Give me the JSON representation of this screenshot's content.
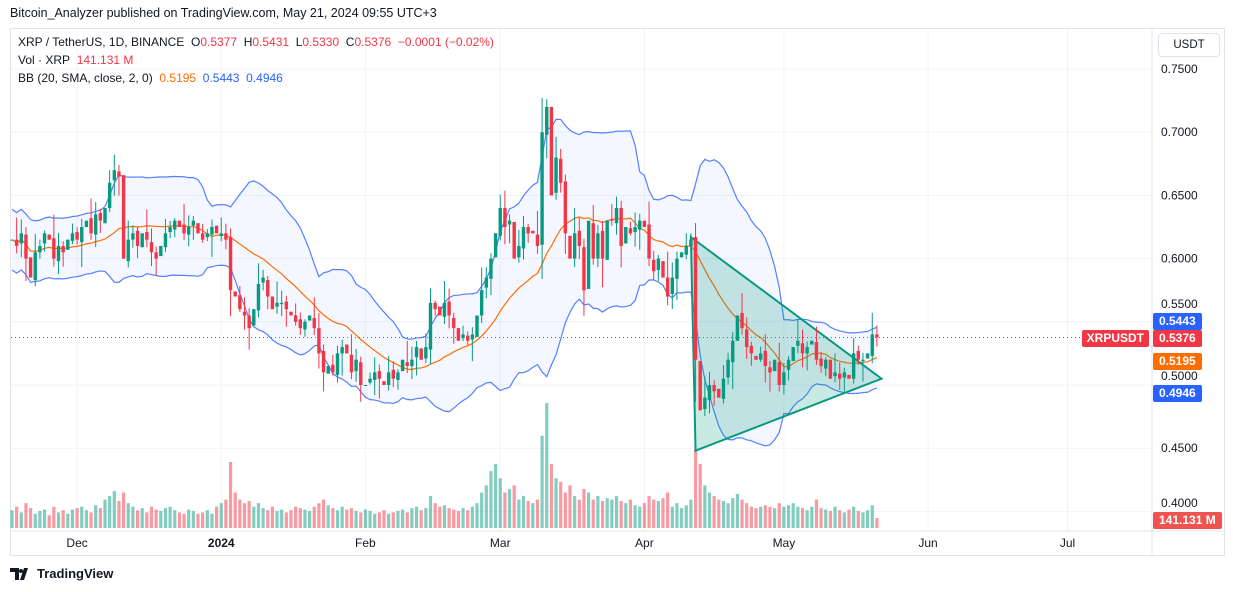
{
  "publisher": "Bitcoin_Analyzer published on TradingView.com, May 21, 2024 09:55 UTC+3",
  "legend": {
    "symbol": "XRP / TetherUS, 1D, BINANCE",
    "o_label": "O",
    "o": "0.5377",
    "h_label": "H",
    "h": "0.5431",
    "l_label": "L",
    "l": "0.5330",
    "c_label": "C",
    "c": "0.5376",
    "change": "−0.0001 (−0.02%)",
    "vol_label": "Vol · XRP",
    "vol": "141.131 M",
    "bb_label": "BB (20, SMA, close, 2, 0)",
    "bb_basis": "0.5195",
    "bb_upper": "0.5443",
    "bb_lower": "0.4946"
  },
  "currency_button": "USDT",
  "tags": {
    "symbol": "XRPUSDT",
    "last": "0.5376",
    "upper": "0.5443",
    "basis": "0.5195",
    "lower": "0.4946",
    "volume": "141.131 M"
  },
  "brand": "TradingView",
  "colors": {
    "up": "#089981",
    "down": "#f23645",
    "bb_band": "#2962ff",
    "bb_basis": "#ff6d00",
    "triangle": "#089981"
  },
  "chart_data": {
    "type": "candlestick",
    "start_date": "2023-11-17",
    "x_tick_labels": [
      "Dec",
      "2024",
      "Feb",
      "Mar",
      "Apr",
      "May",
      "Jun",
      "Jul"
    ],
    "y_tick_labels": [
      "0.7500",
      "0.7000",
      "0.6500",
      "0.6000",
      "0.5500",
      "0.5000",
      "0.4500",
      "0.4000"
    ],
    "ylim": [
      0.39,
      0.76
    ],
    "grid": true,
    "closes": [
      0.615,
      0.61,
      0.62,
      0.6,
      0.585,
      0.605,
      0.61,
      0.62,
      0.615,
      0.6,
      0.61,
      0.605,
      0.615,
      0.62,
      0.615,
      0.625,
      0.63,
      0.62,
      0.635,
      0.63,
      0.64,
      0.66,
      0.67,
      0.665,
      0.6,
      0.615,
      0.62,
      0.61,
      0.62,
      0.615,
      0.605,
      0.6,
      0.61,
      0.62,
      0.625,
      0.63,
      0.625,
      0.62,
      0.625,
      0.63,
      0.62,
      0.615,
      0.62,
      0.625,
      0.62,
      0.62,
      0.615,
      0.575,
      0.57,
      0.56,
      0.555,
      0.545,
      0.56,
      0.58,
      0.585,
      0.57,
      0.56,
      0.565,
      0.565,
      0.56,
      0.555,
      0.55,
      0.545,
      0.55,
      0.555,
      0.545,
      0.525,
      0.51,
      0.515,
      0.51,
      0.525,
      0.53,
      0.525,
      0.51,
      0.52,
      0.5,
      0.5,
      0.505,
      0.51,
      0.505,
      0.5,
      0.51,
      0.505,
      0.51,
      0.52,
      0.515,
      0.52,
      0.53,
      0.52,
      0.53,
      0.565,
      0.56,
      0.555,
      0.565,
      0.555,
      0.545,
      0.535,
      0.54,
      0.535,
      0.54,
      0.555,
      0.575,
      0.585,
      0.6,
      0.62,
      0.64,
      0.625,
      0.63,
      0.6,
      0.61,
      0.625,
      0.62,
      0.62,
      0.61,
      0.7,
      0.72,
      0.65,
      0.68,
      0.66,
      0.62,
      0.6,
      0.62,
      0.61,
      0.575,
      0.63,
      0.6,
      0.62,
      0.6,
      0.63,
      0.63,
      0.64,
      0.61,
      0.625,
      0.62,
      0.625,
      0.63,
      0.625,
      0.6,
      0.59,
      0.6,
      0.585,
      0.57,
      0.585,
      0.6,
      0.605,
      0.61,
      0.615,
      0.52,
      0.48,
      0.49,
      0.5,
      0.495,
      0.49,
      0.505,
      0.52,
      0.535,
      0.555,
      0.545,
      0.53,
      0.525,
      0.52,
      0.525,
      0.515,
      0.51,
      0.52,
      0.5,
      0.51,
      0.52,
      0.53,
      0.535,
      0.525,
      0.53,
      0.535,
      0.52,
      0.515,
      0.52,
      0.505,
      0.51,
      0.505,
      0.51,
      0.505,
      0.525,
      0.52,
      0.52,
      0.525,
      0.54,
      0.5376
    ],
    "volumes_m": [
      250,
      300,
      220,
      350,
      280,
      200,
      240,
      260,
      180,
      300,
      220,
      250,
      200,
      260,
      280,
      300,
      250,
      220,
      320,
      280,
      400,
      450,
      520,
      380,
      500,
      350,
      300,
      250,
      280,
      220,
      300,
      260,
      240,
      280,
      300,
      250,
      220,
      200,
      260,
      240,
      200,
      220,
      250,
      200,
      300,
      350,
      400,
      930,
      500,
      400,
      350,
      380,
      300,
      350,
      280,
      250,
      300,
      240,
      260,
      220,
      250,
      300,
      280,
      260,
      240,
      300,
      350,
      400,
      320,
      280,
      250,
      300,
      260,
      280,
      240,
      220,
      260,
      240,
      200,
      220,
      250,
      200,
      220,
      240,
      260,
      220,
      280,
      300,
      250,
      280,
      450,
      350,
      300,
      320,
      280,
      260,
      240,
      280,
      250,
      300,
      350,
      500,
      600,
      800,
      900,
      700,
      500,
      550,
      600,
      400,
      450,
      380,
      350,
      400,
      1300,
      1760,
      900,
      700,
      650,
      500,
      600,
      450,
      400,
      550,
      500,
      400,
      450,
      380,
      420,
      400,
      450,
      380,
      350,
      400,
      320,
      300,
      350,
      450,
      400,
      380,
      420,
      500,
      300,
      350,
      280,
      320,
      400,
      1100,
      900,
      600,
      500,
      450,
      400,
      380,
      350,
      420,
      480,
      400,
      350,
      300,
      280,
      300,
      320,
      300,
      280,
      350,
      300,
      320,
      350,
      300,
      280,
      250,
      300,
      400,
      280,
      260,
      240,
      300,
      250,
      220,
      260,
      300,
      240,
      220,
      250,
      320,
      141
    ]
  },
  "drawing": {
    "type": "triangle",
    "points": [
      [
        "2024-04-11",
        0.617
      ],
      [
        "2024-04-12",
        0.448
      ],
      [
        "2024-05-22",
        0.505
      ]
    ]
  }
}
